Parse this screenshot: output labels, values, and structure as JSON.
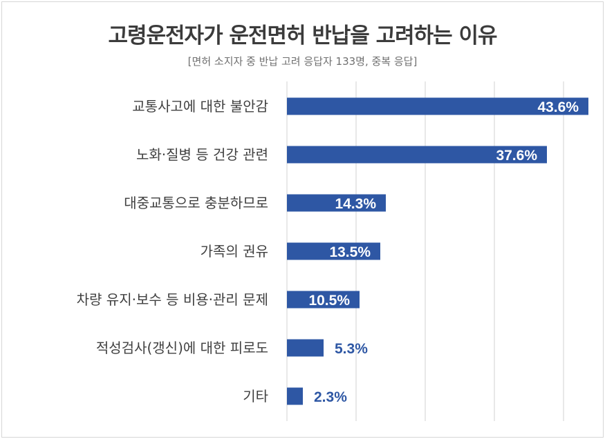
{
  "chart_data": {
    "type": "bar",
    "orientation": "horizontal",
    "title": "고령운전자가 운전면허 반납을 고려하는 이유",
    "subtitle": "[면허 소지자 중 반납 고려 응답자 133명, 중복 응답]",
    "categories": [
      "교통사고에 대한 불안감",
      "노화·질병 등 건강 관련",
      "대중교통으로 충분하므로",
      "가족의 권유",
      "차량 유지·보수 등 비용·관리 문제",
      "적성검사(갱신)에 대한 피로도",
      "기타"
    ],
    "values": [
      43.6,
      37.6,
      14.3,
      13.5,
      10.5,
      5.3,
      2.3
    ],
    "value_labels": [
      "43.6%",
      "37.6%",
      "14.3%",
      "13.5%",
      "10.5%",
      "5.3%",
      "2.3%"
    ],
    "xlim": [
      0,
      50
    ],
    "grid": true,
    "legend": "none",
    "bar_color": "#2e57a4",
    "label_color_inside": "#ffffff",
    "label_color_outside": "#2e57a4"
  }
}
